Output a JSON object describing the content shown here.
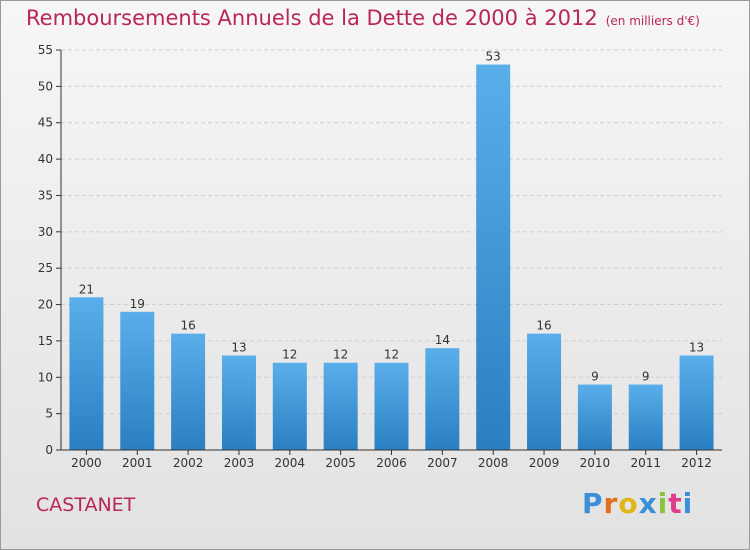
{
  "header": {
    "title": "Remboursements Annuels de la Dette de 2000 à 2012",
    "subtitle": "(en milliers d'€)"
  },
  "footer": {
    "city": "CASTANET",
    "brand": "Proxiti"
  },
  "colors": {
    "title": "#b8265a",
    "bar_top": "#5aaeea",
    "bar_bottom": "#2a7fc2",
    "axis": "#333333",
    "grid": "#cfcfcf"
  },
  "chart_data": {
    "type": "bar",
    "title": "Remboursements Annuels de la Dette de 2000 à 2012",
    "subtitle": "(en milliers d'€)",
    "xlabel": "",
    "ylabel": "",
    "categories": [
      "2000",
      "2001",
      "2002",
      "2003",
      "2004",
      "2005",
      "2006",
      "2007",
      "2008",
      "2009",
      "2010",
      "2011",
      "2012"
    ],
    "values": [
      21,
      19,
      16,
      13,
      12,
      12,
      12,
      14,
      53,
      16,
      9,
      9,
      13
    ],
    "ylim": [
      0,
      55
    ],
    "yticks": [
      0,
      5,
      10,
      15,
      20,
      25,
      30,
      35,
      40,
      45,
      50,
      55
    ],
    "grid": "y-dashed",
    "data_labels": true
  }
}
